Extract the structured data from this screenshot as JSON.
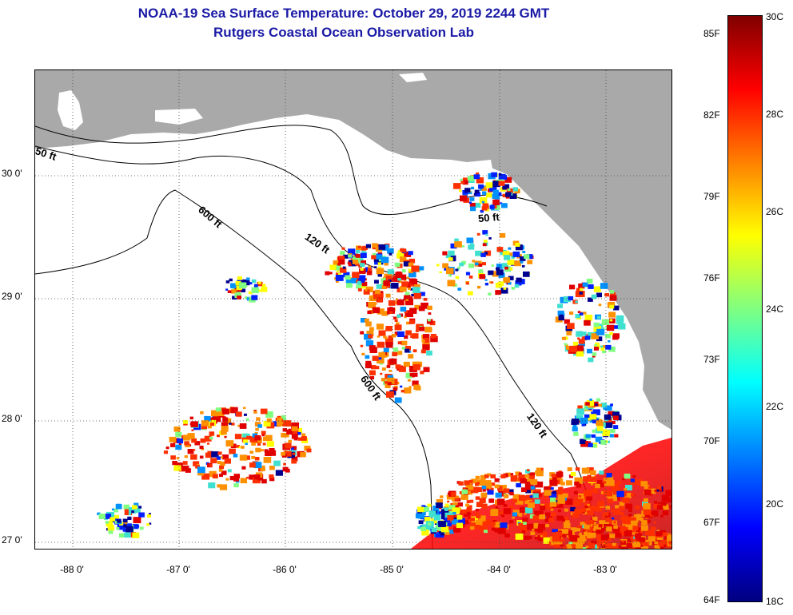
{
  "title": {
    "line1": "NOAA-19 Sea Surface Temperature:  October 29, 2019 2244 GMT",
    "line2": "Rutgers Coastal Ocean Observation Lab"
  },
  "map": {
    "land_color": "#a9a9a9",
    "lat_ticks": [
      {
        "value": 30,
        "label": "30 0'"
      },
      {
        "value": 29,
        "label": "29 0'"
      },
      {
        "value": 28,
        "label": "28 0'"
      },
      {
        "value": 27,
        "label": "27 0'"
      }
    ],
    "lon_ticks": [
      {
        "value": -88,
        "label": "-88 0'"
      },
      {
        "value": -87,
        "label": "-87 0'"
      },
      {
        "value": -86,
        "label": "-86 0'"
      },
      {
        "value": -85,
        "label": "-85 0'"
      },
      {
        "value": -84,
        "label": "-84 0'"
      },
      {
        "value": -83,
        "label": "-83 0'"
      }
    ],
    "depth_labels": [
      "50 ft",
      "600 ft",
      "120 ft",
      "600 ft",
      "50 ft",
      "120 ft"
    ]
  },
  "colorbar": {
    "min_c": 18,
    "max_c": 30,
    "celsius_labels": [
      "30C",
      "28C",
      "26C",
      "24C",
      "22C",
      "20C",
      "18C"
    ],
    "fahrenheit_labels": [
      "85F",
      "82F",
      "79F",
      "76F",
      "73F",
      "70F",
      "67F",
      "64F"
    ],
    "colors": [
      "#00007f",
      "#0000ff",
      "#0080ff",
      "#00ffff",
      "#80ff80",
      "#ffff00",
      "#ff8000",
      "#ff0000",
      "#800000"
    ]
  }
}
